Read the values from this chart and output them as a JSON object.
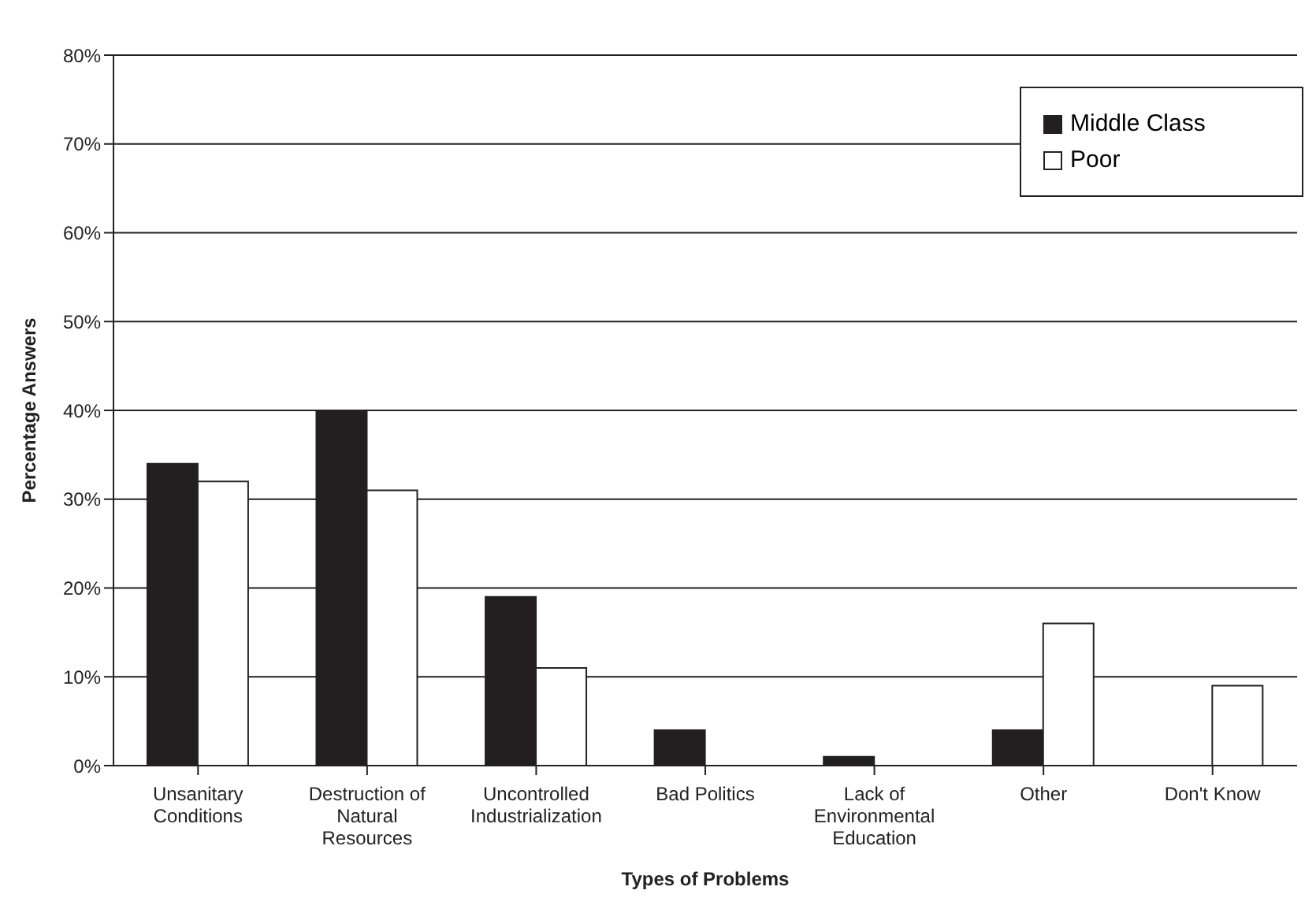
{
  "chart_data": {
    "type": "bar",
    "xlabel": "Types of Problems",
    "ylabel": "Percentage Answers",
    "categories": [
      "Unsanitary Conditions",
      "Destruction of Natural Resources",
      "Uncontrolled Industrialization",
      "Bad Politics",
      "Lack of Environmental Education",
      "Other",
      "Don't Know"
    ],
    "series": [
      {
        "name": "Middle Class",
        "color": "#231f20",
        "values": [
          34,
          40,
          19,
          4,
          1,
          4,
          0
        ]
      },
      {
        "name": "Poor",
        "color": "#ffffff",
        "values": [
          32,
          31,
          11,
          0,
          0,
          16,
          9
        ]
      }
    ],
    "ylim": [
      0,
      80
    ],
    "yticks": [
      {
        "value": 0,
        "label": "0%"
      },
      {
        "value": 10,
        "label": "10%"
      },
      {
        "value": 20,
        "label": "20%"
      },
      {
        "value": 30,
        "label": "30%"
      },
      {
        "value": 40,
        "label": "40%"
      },
      {
        "value": 50,
        "label": "50%"
      },
      {
        "value": 60,
        "label": "60%"
      },
      {
        "value": 70,
        "label": "70%"
      },
      {
        "value": 80,
        "label": "80%"
      }
    ],
    "grid": "y",
    "legend": "top right"
  }
}
